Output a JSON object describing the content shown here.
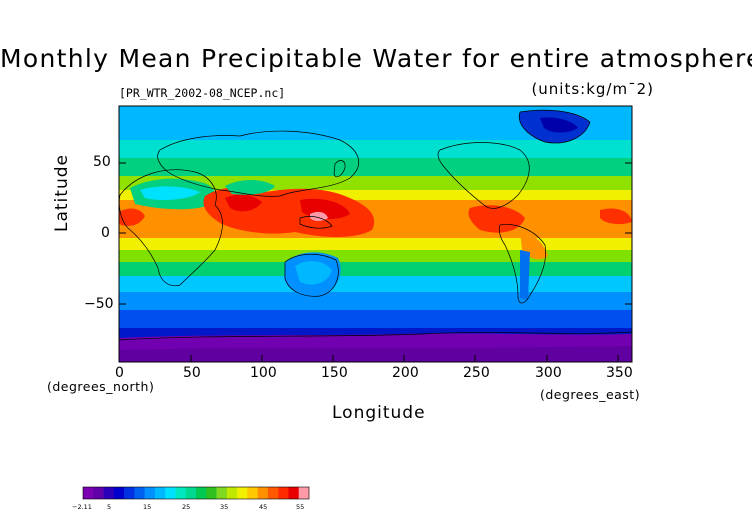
{
  "title": "Monthly Mean Precipitable Water for entire atmosphere",
  "file_label": "[PR_WTR_2002-08_NCEP.nc]",
  "units_label": "(units:kg/m¯2)",
  "y_axis": {
    "label": "Latitude",
    "ticks": [
      "50",
      "0",
      "−50"
    ],
    "unit": "(degrees_north)"
  },
  "x_axis": {
    "label": "Longitude",
    "ticks": [
      "0",
      "50",
      "100",
      "150",
      "200",
      "250",
      "300",
      "350"
    ],
    "unit": "(degrees_east)"
  },
  "colorbar": {
    "labels": [
      "−2.11",
      "5",
      "15",
      "25",
      "35",
      "45",
      "55"
    ],
    "colors": [
      "#7a00b0",
      "#6000a8",
      "#2a00b8",
      "#0000cc",
      "#0030e0",
      "#0060f0",
      "#0090ff",
      "#00b8ff",
      "#00e0ff",
      "#00e8c0",
      "#00d890",
      "#00c850",
      "#30c020",
      "#80d820",
      "#c0e800",
      "#f0f000",
      "#ffc800",
      "#ff9000",
      "#ff5a00",
      "#ff2a00",
      "#e80000",
      "#ff9aa8"
    ]
  },
  "colors": {
    "polar": "#8000b0",
    "southern_ocean_dark": "#0018c8",
    "southern_ocean": "#0050f0",
    "cool_ocean": "#00a8ff",
    "mid_ocean": "#00e0e0",
    "temperate": "#00d080",
    "subtropic": "#80e000",
    "yellow": "#f0f000",
    "tropic": "#ff9000",
    "hot": "#ff3000",
    "peak": "#ff9aa8"
  }
}
